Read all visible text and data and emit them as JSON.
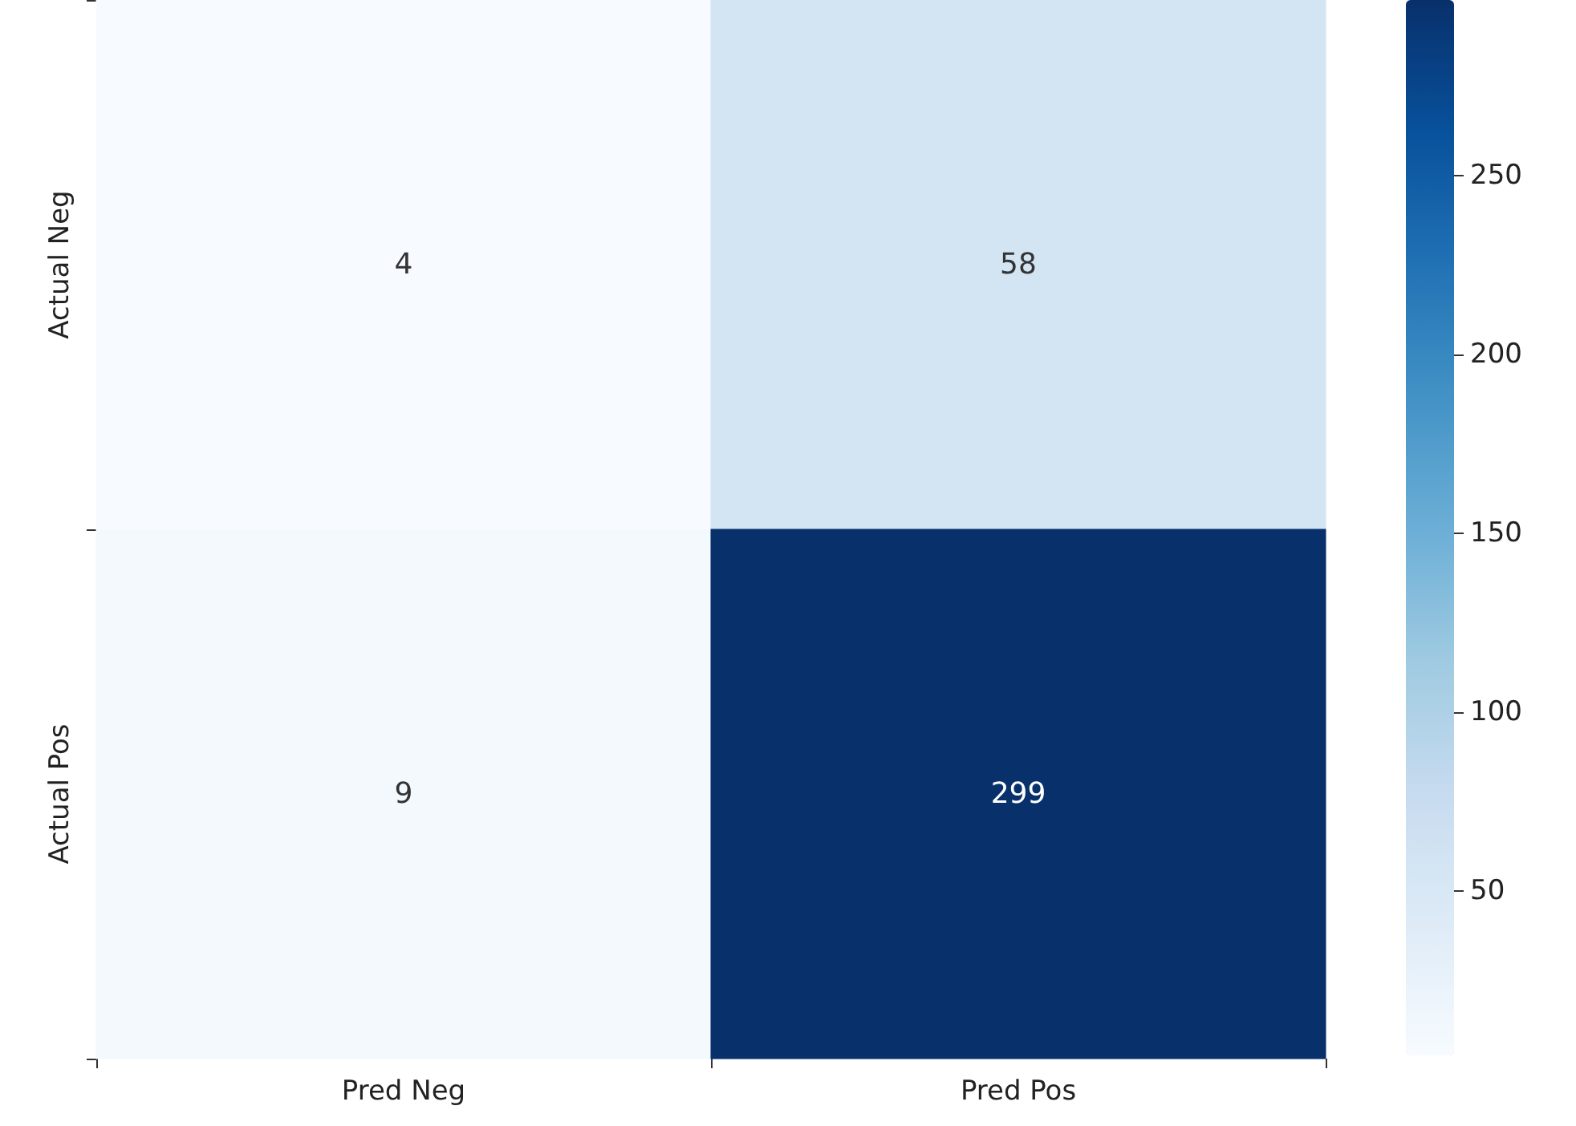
{
  "chart_data": {
    "type": "heatmap",
    "categories": [
      "Pred Neg",
      "Pred Pos"
    ],
    "y_categories": [
      "Actual Neg",
      "Actual Pos"
    ],
    "cells": [
      [
        4,
        58
      ],
      [
        9,
        299
      ]
    ],
    "clim": [
      4,
      299
    ],
    "cticks": [
      50,
      100,
      150,
      200,
      250
    ],
    "data_labels": true
  }
}
